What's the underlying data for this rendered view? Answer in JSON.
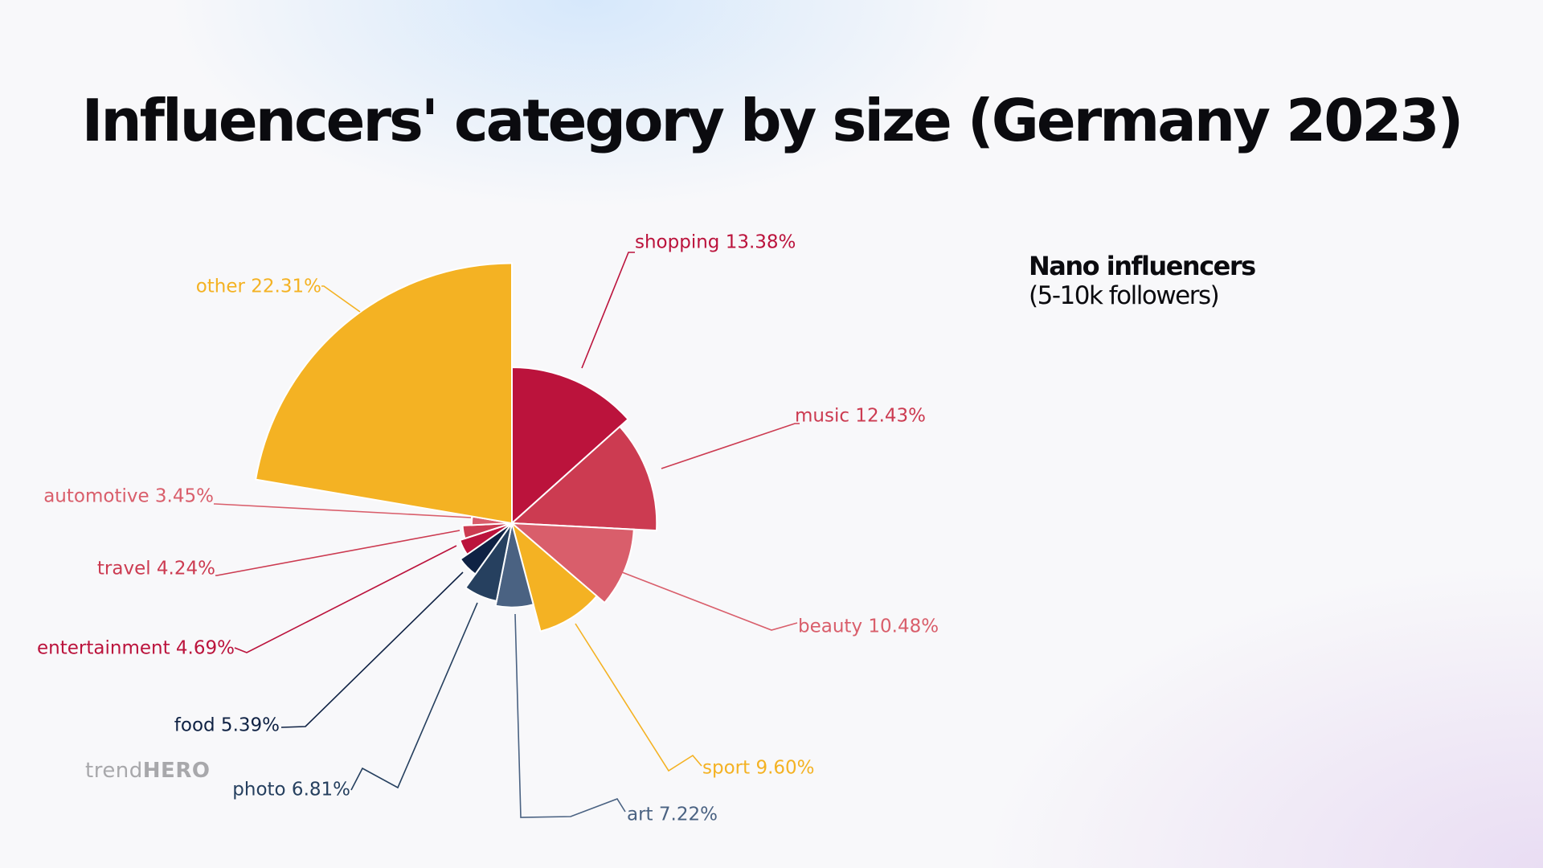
{
  "header": {
    "title": "Influencers' category by size (Germany 2023)"
  },
  "segment": {
    "name": "Nano influencers",
    "detail": "(5-10k followers)"
  },
  "logo": {
    "light": "trend",
    "bold": "HERO"
  },
  "chart_data": {
    "type": "pie",
    "variant": "variable-radius (radius and angle proportional to share)",
    "title": "Influencers' category by size (Germany 2023)",
    "unit": "%",
    "slices": [
      {
        "label": "shopping",
        "value": 13.38,
        "display": "shopping 13.38%",
        "color": "#bb133c"
      },
      {
        "label": "music",
        "value": 12.43,
        "display": "music 12.43%",
        "color": "#cc3b51"
      },
      {
        "label": "beauty",
        "value": 10.48,
        "display": "beauty 10.48%",
        "color": "#d95e6b"
      },
      {
        "label": "sport",
        "value": 9.6,
        "display": "sport 9.60%",
        "color": "#f4b223"
      },
      {
        "label": "art",
        "value": 7.22,
        "display": "art 7.22%",
        "color": "#4a6282"
      },
      {
        "label": "photo",
        "value": 6.81,
        "display": "photo 6.81%",
        "color": "#26405f"
      },
      {
        "label": "food",
        "value": 5.39,
        "display": "food 5.39%",
        "color": "#0f2244"
      },
      {
        "label": "entertainment",
        "value": 4.69,
        "display": "entertainment 4.69%",
        "color": "#bb133c"
      },
      {
        "label": "travel",
        "value": 4.24,
        "display": "travel 4.24%",
        "color": "#cc3b51"
      },
      {
        "label": "automotive",
        "value": 3.45,
        "display": "automotive 3.45%",
        "color": "#d95e6b"
      },
      {
        "label": "other",
        "value": 22.31,
        "display": "other 22.31%",
        "color": "#f4b223"
      }
    ],
    "legend": "none (labels with leader lines)"
  }
}
